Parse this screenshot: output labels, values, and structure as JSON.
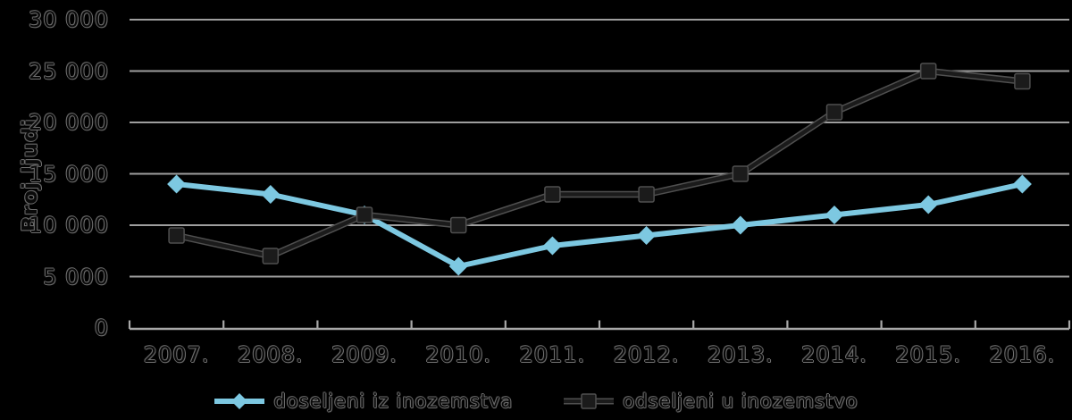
{
  "page": {
    "background": "#000000"
  },
  "chart_data": {
    "type": "line",
    "title": "",
    "xlabel": "",
    "ylabel": "Broj ljudi",
    "ylim": [
      0,
      30000
    ],
    "grid": true,
    "legend_position": "bottom-center",
    "categories": [
      "2007.",
      "2008.",
      "2009.",
      "2010.",
      "2011.",
      "2012.",
      "2013.",
      "2014.",
      "2015.",
      "2016."
    ],
    "y_ticks": [
      {
        "value": 0,
        "label": "0"
      },
      {
        "value": 5000,
        "label": "5 000"
      },
      {
        "value": 10000,
        "label": "10 000"
      },
      {
        "value": 15000,
        "label": "15 000"
      },
      {
        "value": 20000,
        "label": "20 000"
      },
      {
        "value": 25000,
        "label": "25 000"
      },
      {
        "value": 30000,
        "label": "30 000"
      }
    ],
    "series": [
      {
        "name": "doseljeni iz inozemstva",
        "marker": "diamond",
        "color": "#7dc8e1",
        "values": [
          14000,
          13000,
          11000,
          6000,
          8000,
          9000,
          10000,
          11000,
          12000,
          14000
        ]
      },
      {
        "name": "odseljeni u inozemstvo",
        "marker": "square",
        "color": "#1b1b1b",
        "halo_color": "#4f4f4f",
        "values": [
          9000,
          7000,
          11000,
          10000,
          13000,
          13000,
          15000,
          21000,
          25000,
          24000
        ]
      }
    ],
    "colors": {
      "gridline": "#9e9e9e",
      "axis": "#a8a8a8",
      "background": "#000000"
    }
  }
}
